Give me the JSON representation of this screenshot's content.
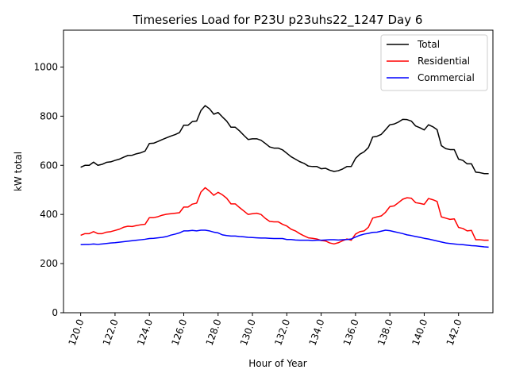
{
  "chart_data": {
    "type": "line",
    "title": "Timeseries Load for P23U p23uhs22_1247  Day 6",
    "xlabel": "Hour of Year",
    "ylabel": "kW total",
    "xlim": [
      119.0,
      144.0
    ],
    "ylim": [
      0,
      1150
    ],
    "x_ticks": [
      120,
      122,
      124,
      126,
      128,
      130,
      132,
      134,
      136,
      138,
      140,
      142
    ],
    "x_tick_labels": [
      "120.0",
      "122.0",
      "124.0",
      "126.0",
      "128.0",
      "130.0",
      "132.0",
      "134.0",
      "136.0",
      "138.0",
      "140.0",
      "142.0"
    ],
    "y_ticks": [
      0,
      200,
      400,
      600,
      800,
      1000
    ],
    "y_tick_labels": [
      "0",
      "200",
      "400",
      "600",
      "800",
      "1000"
    ],
    "legend_position": "top-right",
    "x": [
      120.0,
      120.25,
      120.5,
      120.75,
      121.0,
      121.25,
      121.5,
      121.75,
      122.0,
      122.25,
      122.5,
      122.75,
      123.0,
      123.25,
      123.5,
      123.75,
      124.0,
      124.25,
      124.5,
      124.75,
      125.0,
      125.25,
      125.5,
      125.75,
      126.0,
      126.25,
      126.5,
      126.75,
      127.0,
      127.25,
      127.5,
      127.75,
      128.0,
      128.25,
      128.5,
      128.75,
      129.0,
      129.25,
      129.5,
      129.75,
      130.0,
      130.25,
      130.5,
      130.75,
      131.0,
      131.25,
      131.5,
      131.75,
      132.0,
      132.25,
      132.5,
      132.75,
      133.0,
      133.25,
      133.5,
      133.75,
      134.0,
      134.25,
      134.5,
      134.75,
      135.0,
      135.25,
      135.5,
      135.75,
      136.0,
      136.25,
      136.5,
      136.75,
      137.0,
      137.25,
      137.5,
      137.75,
      138.0,
      138.25,
      138.5,
      138.75,
      139.0,
      139.25,
      139.5,
      139.75,
      140.0,
      140.25,
      140.5,
      140.75,
      141.0,
      141.25,
      141.5,
      141.75,
      142.0,
      142.25,
      142.5,
      142.75,
      143.0,
      143.25,
      143.5,
      143.75
    ],
    "series": [
      {
        "name": "Total",
        "color": "#000000",
        "values": [
          592,
          600,
          600,
          613,
          600,
          604,
          612,
          614,
          620,
          625,
          633,
          640,
          641,
          647,
          651,
          658,
          689,
          690,
          697,
          705,
          712,
          719,
          725,
          733,
          763,
          763,
          778,
          780,
          823,
          843,
          830,
          808,
          815,
          797,
          780,
          755,
          755,
          740,
          722,
          705,
          708,
          708,
          702,
          689,
          675,
          670,
          670,
          663,
          649,
          635,
          625,
          615,
          608,
          597,
          595,
          595,
          586,
          588,
          580,
          575,
          578,
          585,
          595,
          595,
          628,
          645,
          655,
          672,
          715,
          718,
          726,
          745,
          765,
          768,
          776,
          787,
          786,
          780,
          760,
          753,
          744,
          765,
          757,
          745,
          680,
          668,
          664,
          664,
          625,
          620,
          606,
          606,
          572,
          570,
          566,
          566
        ]
      },
      {
        "name": "Residential",
        "color": "#ff0000",
        "values": [
          315,
          322,
          322,
          330,
          322,
          322,
          328,
          330,
          335,
          340,
          348,
          352,
          351,
          355,
          358,
          360,
          387,
          387,
          391,
          397,
          401,
          403,
          405,
          407,
          430,
          430,
          442,
          446,
          491,
          509,
          495,
          478,
          490,
          480,
          466,
          443,
          443,
          428,
          414,
          400,
          403,
          405,
          400,
          384,
          372,
          370,
          370,
          360,
          353,
          340,
          333,
          322,
          313,
          305,
          303,
          300,
          294,
          292,
          284,
          280,
          285,
          293,
          300,
          295,
          320,
          330,
          333,
          348,
          385,
          390,
          394,
          409,
          432,
          435,
          448,
          462,
          468,
          466,
          448,
          445,
          441,
          465,
          460,
          453,
          390,
          385,
          380,
          382,
          347,
          343,
          333,
          335,
          297,
          297,
          295,
          295
        ]
      },
      {
        "name": "Commercial",
        "color": "#0000ff",
        "values": [
          277,
          278,
          278,
          280,
          278,
          280,
          282,
          284,
          285,
          287,
          289,
          291,
          293,
          295,
          297,
          299,
          302,
          303,
          305,
          307,
          310,
          316,
          320,
          325,
          333,
          333,
          335,
          333,
          336,
          336,
          333,
          328,
          325,
          317,
          314,
          312,
          312,
          310,
          309,
          307,
          306,
          305,
          304,
          304,
          303,
          302,
          302,
          302,
          298,
          298,
          296,
          295,
          295,
          295,
          294,
          295,
          295,
          296,
          297,
          297,
          296,
          297,
          298,
          300,
          308,
          315,
          320,
          323,
          327,
          328,
          332,
          336,
          334,
          330,
          326,
          322,
          317,
          314,
          310,
          307,
          303,
          300,
          296,
          292,
          288,
          284,
          282,
          280,
          278,
          277,
          275,
          273,
          272,
          270,
          268,
          267
        ]
      }
    ]
  }
}
